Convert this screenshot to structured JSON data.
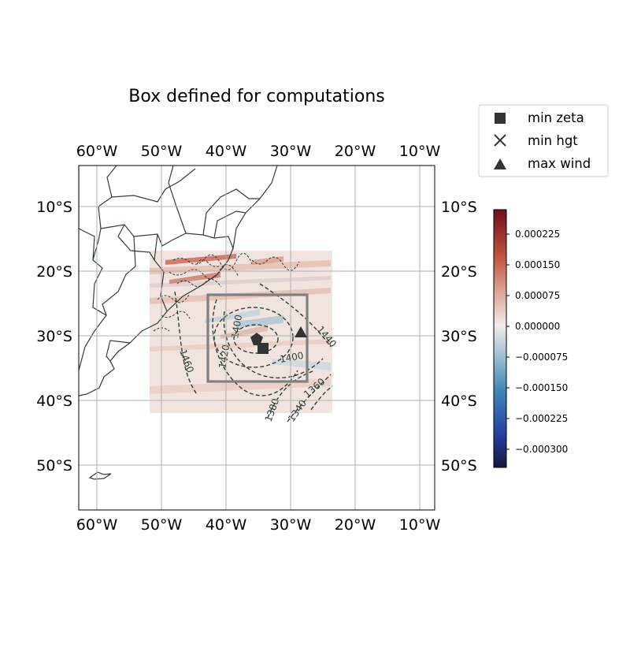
{
  "title": "Box defined for computations",
  "lon_ticks": [
    "60°W",
    "50°W",
    "40°W",
    "30°W",
    "20°W",
    "10°W"
  ],
  "lat_ticks": [
    "10°S",
    "20°S",
    "30°S",
    "40°S",
    "50°S"
  ],
  "legend": [
    {
      "marker": "square",
      "label": "min zeta"
    },
    {
      "marker": "x",
      "label": "min hgt"
    },
    {
      "marker": "triangle",
      "label": "max wind"
    }
  ],
  "colorbar": {
    "ticks": [
      "0.000225",
      "0.000150",
      "0.000075",
      "0.000000",
      "−0.000075",
      "−0.000150",
      "−0.000225",
      "−0.000300"
    ],
    "range": [
      -0.00034,
      0.00028
    ],
    "colormap": "red-white-blue (balance)"
  },
  "contour_labels": [
    "1400",
    "1420",
    "1460",
    "1440",
    "1400",
    "1360",
    "1380",
    "1340"
  ],
  "map_extent": {
    "lon": [
      -62.8,
      -7.5
    ],
    "lat": [
      -57.2,
      -3.8
    ]
  },
  "field_extent": {
    "lon": [
      -52,
      -24
    ],
    "lat": [
      -42,
      -17
    ]
  },
  "computation_box": {
    "lon": [
      -43,
      -27.5
    ],
    "lat": [
      -37,
      -23.6
    ]
  },
  "markers": {
    "min_zeta": {
      "lon": -34,
      "lat": -32
    },
    "max_wind": {
      "lon": -28,
      "lat": -29
    }
  },
  "colors": {
    "box": "#808080",
    "contour": "#2f3f37",
    "coast": "#2f3f37",
    "marker": "#333333",
    "grid": "#b0b0b0"
  }
}
